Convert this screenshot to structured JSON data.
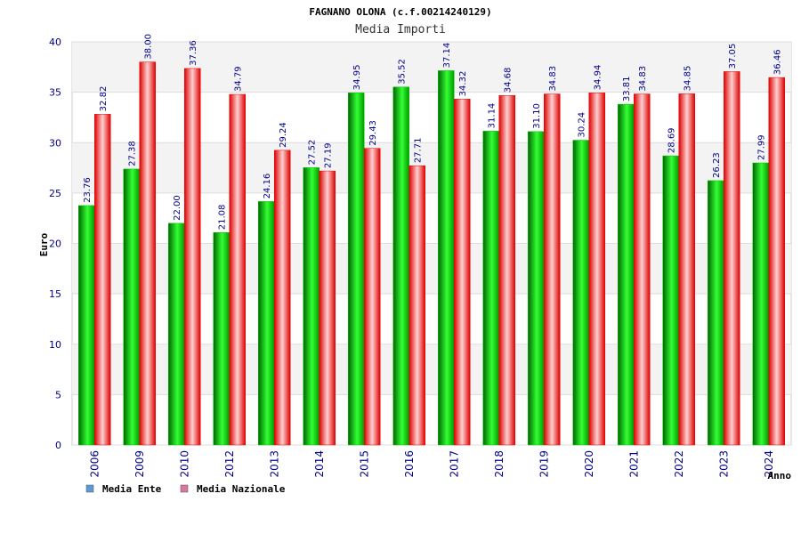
{
  "chart_data": {
    "type": "bar",
    "title": "FAGNANO OLONA (c.f.00214240129)",
    "subtitle": "Media Importi",
    "xlabel": "Anno",
    "ylabel": "Euro",
    "ylim": [
      0,
      40
    ],
    "yticks": [
      0,
      5,
      10,
      15,
      20,
      25,
      30,
      35,
      40
    ],
    "grid": true,
    "legend_position": "bottom-left",
    "categories": [
      "2006",
      "2009",
      "2010",
      "2012",
      "2013",
      "2014",
      "2015",
      "2016",
      "2017",
      "2018",
      "2019",
      "2020",
      "2021",
      "2022",
      "2023",
      "2024"
    ],
    "series": [
      {
        "name": "Media Ente",
        "color": "#00cc00",
        "legend_color": "#5b9bd5",
        "values": [
          23.76,
          27.38,
          22.0,
          21.08,
          24.16,
          27.52,
          34.95,
          35.52,
          37.14,
          31.14,
          31.1,
          30.24,
          33.81,
          28.69,
          26.23,
          27.99
        ],
        "labels": [
          "23.76",
          "27.38",
          "22.00",
          "21.08",
          "24.16",
          "27.52",
          "34.95",
          "35.52",
          "37.14",
          "31.14",
          "31.10",
          "30.24",
          "33.81",
          "28.69",
          "26.23",
          "27.99"
        ]
      },
      {
        "name": "Media Nazionale",
        "color": "#ee0000",
        "legend_color": "#d9779f",
        "values": [
          32.82,
          38.0,
          37.36,
          34.79,
          29.24,
          27.19,
          29.43,
          27.71,
          34.32,
          34.68,
          34.83,
          34.94,
          34.83,
          34.85,
          37.05,
          36.46
        ],
        "labels": [
          "32.82",
          "38.00",
          "37.36",
          "34.79",
          "29.24",
          "27.19",
          "29.43",
          "27.71",
          "34.32",
          "34.68",
          "34.83",
          "34.94",
          "34.83",
          "34.85",
          "37.05",
          "36.46"
        ]
      }
    ]
  }
}
